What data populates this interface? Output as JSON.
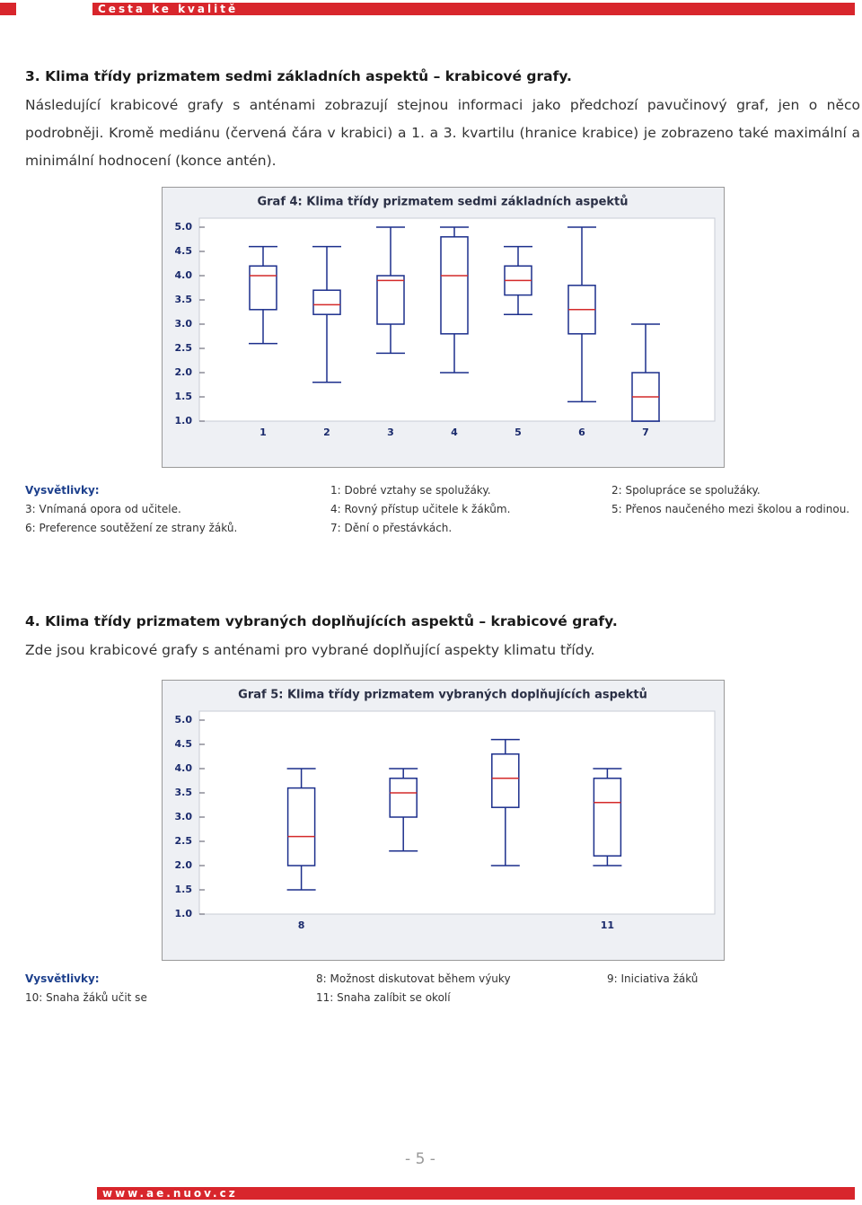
{
  "header": {
    "brand": "Cesta ke kvalitě"
  },
  "section3": {
    "heading": "3. Klima třídy prizmatem sedmi základních aspektů – krabicové grafy.",
    "paragraph": "Následující krabicové grafy s anténami zobrazují stejnou informaci jako předchozí pavučinový graf, jen o něco podrobněji. Kromě mediánu (červená čára v krabici) a 1. a 3. kvartilu (hranice krabice) je zobrazeno také maximální a minimální hodnocení (konce antén)."
  },
  "chart_data": [
    {
      "type": "box",
      "title": "Graf 4: Klima třídy prizmatem sedmi základních aspektů",
      "categories": [
        "1",
        "2",
        "3",
        "4",
        "5",
        "6",
        "7"
      ],
      "boxes": [
        {
          "min": 2.6,
          "q1": 3.3,
          "median": 4.0,
          "q3": 4.2,
          "max": 4.6
        },
        {
          "min": 1.8,
          "q1": 3.2,
          "median": 3.4,
          "q3": 3.7,
          "max": 4.6
        },
        {
          "min": 2.4,
          "q1": 3.0,
          "median": 3.9,
          "q3": 4.0,
          "max": 5.0
        },
        {
          "min": 2.0,
          "q1": 2.8,
          "median": 4.0,
          "q3": 4.8,
          "max": 5.0
        },
        {
          "min": 3.2,
          "q1": 3.6,
          "median": 3.9,
          "q3": 4.2,
          "max": 4.6
        },
        {
          "min": 1.4,
          "q1": 2.8,
          "median": 3.3,
          "q3": 3.8,
          "max": 5.0
        },
        {
          "min": 1.0,
          "q1": 1.0,
          "median": 1.5,
          "q3": 2.0,
          "max": 3.0
        }
      ],
      "box_color": "#1c2f8c",
      "median_color": "#d42a2a",
      "ylim": [
        1,
        5
      ],
      "yticks": [
        {
          "value": 1,
          "label": "1.0"
        },
        {
          "value": 1.5,
          "label": "1.5"
        },
        {
          "value": 2,
          "label": "2.0"
        },
        {
          "value": 2.5,
          "label": "2.5"
        },
        {
          "value": 3,
          "label": "3.0"
        },
        {
          "value": 3.5,
          "label": "3.5"
        },
        {
          "value": 4,
          "label": "4.0"
        },
        {
          "value": 4.5,
          "label": "4.5"
        },
        {
          "value": 5,
          "label": "5.0"
        }
      ],
      "grid": false
    },
    {
      "type": "box",
      "title": "Graf 5: Klima třídy prizmatem vybraných doplňujících aspektů",
      "categories": [
        "8",
        null,
        null,
        "11"
      ],
      "boxes": [
        {
          "min": 1.5,
          "q1": 2.0,
          "median": 2.6,
          "q3": 3.6,
          "max": 4.0
        },
        {
          "min": 2.3,
          "q1": 3.0,
          "median": 3.5,
          "q3": 3.8,
          "max": 4.0
        },
        {
          "min": 2.0,
          "q1": 3.2,
          "median": 3.8,
          "q3": 4.3,
          "max": 4.6
        },
        {
          "min": 2.0,
          "q1": 2.2,
          "median": 3.3,
          "q3": 3.8,
          "max": 4.0
        }
      ],
      "box_color": "#1c2f8c",
      "median_color": "#d42a2a",
      "ylim": [
        1,
        5
      ],
      "yticks": [
        {
          "value": 1,
          "label": "1.0"
        },
        {
          "value": 1.5,
          "label": "1.5"
        },
        {
          "value": 2,
          "label": "2.0"
        },
        {
          "value": 2.5,
          "label": "2.5"
        },
        {
          "value": 3,
          "label": "3.0"
        },
        {
          "value": 3.5,
          "label": "3.5"
        },
        {
          "value": 4,
          "label": "4.0"
        },
        {
          "value": 4.5,
          "label": "4.5"
        },
        {
          "value": 5,
          "label": "5.0"
        }
      ],
      "grid": false
    }
  ],
  "legend1": {
    "label": "Vysvětlivky:",
    "items": [
      "1: Dobré vztahy se spolužáky.",
      "2: Spolupráce se spolužáky.",
      "3: Vnímaná opora od učitele.",
      "4: Rovný přístup učitele k žákům.",
      "5: Přenos naučeného mezi školou a rodinou.",
      "6: Preference soutěžení ze strany žáků.",
      "7: Dění o přestávkách."
    ]
  },
  "section4": {
    "heading": "4. Klima třídy prizmatem vybraných doplňujících aspektů – krabicové grafy.",
    "paragraph": "Zde jsou krabicové grafy s anténami pro vybrané doplňující aspekty klimatu třídy."
  },
  "legend2": {
    "label": "Vysvětlivky:",
    "items": [
      "8: Možnost diskutovat během výuky",
      "9: Iniciativa žáků",
      "10: Snaha žáků učit se",
      "11: Snaha zalíbit se okolí"
    ]
  },
  "footer": {
    "page": "- 5 -",
    "url": "www.ae.nuov.cz"
  }
}
